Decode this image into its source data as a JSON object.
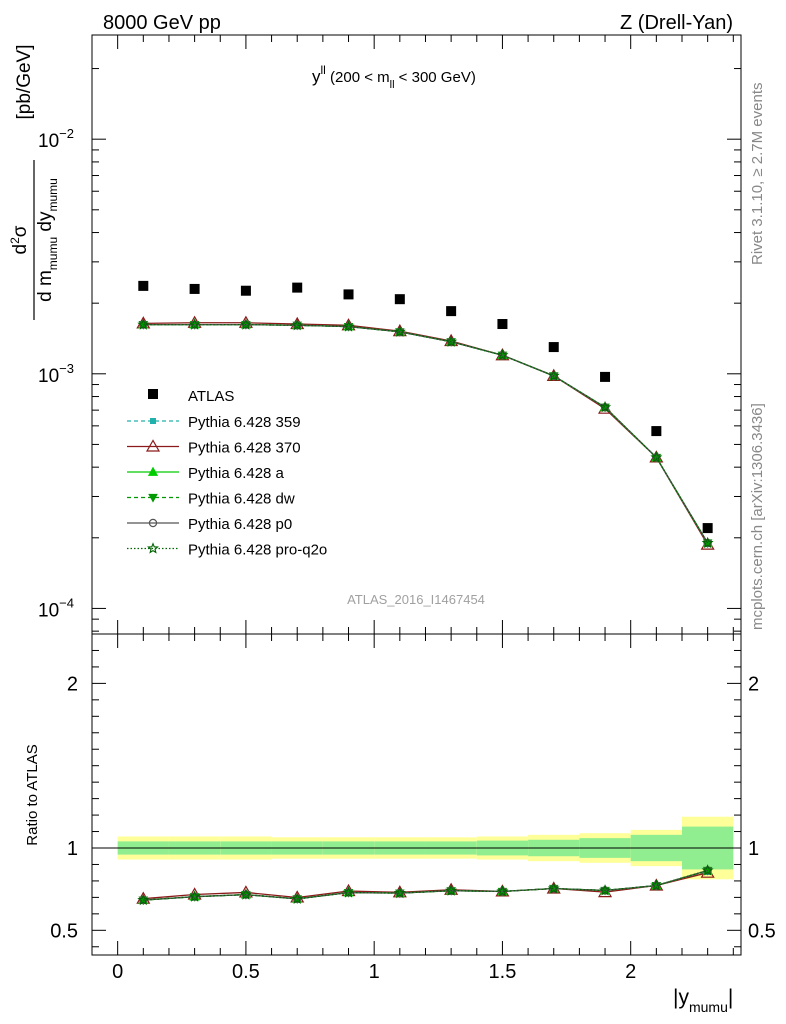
{
  "header": {
    "left": "8000 GeV pp",
    "right": "Z (Drell-Yan)"
  },
  "side_labels": {
    "rivet": "Rivet 3.1.10, ≥ 2.7M events",
    "mcplots": "mcplots.cern.ch [arXiv:1306.3436]"
  },
  "chart_data": {
    "type": "scatter",
    "title": "y^ll (200 < m_ll < 300 GeV)",
    "title_parts": {
      "main": "y",
      "sup": "ll",
      "open": " (200 < m",
      "sub": "ll",
      "close": " < 300 GeV)"
    },
    "watermark": "ATLAS_2016_I1467454",
    "xlabel": "|y_mumu|",
    "xlabel_parts": {
      "main": "|y",
      "sub": "mumu",
      "close": "|"
    },
    "ylabel": "d²σ / d m_mumu dy_mumu [pb/GeV]",
    "ylabel_parts": {
      "num_main": "d",
      "num_sup": "2",
      "num_rest": "σ",
      "den_a": "d m",
      "den_a_sub": "mumu",
      "den_b": " dy",
      "den_b_sub": "mumu",
      "unit": "[pb/GeV]"
    },
    "ratio_ylabel": "Ratio to ATLAS",
    "xlim": [
      -0.1,
      2.43
    ],
    "ylim": [
      7.78e-05,
      0.0278
    ],
    "yscale": "log",
    "ratio_ylim": [
      0.35,
      2.3
    ],
    "x_ticks": [
      {
        "v": 0,
        "label": "0"
      },
      {
        "v": 0.5,
        "label": "0.5"
      },
      {
        "v": 1,
        "label": "1"
      },
      {
        "v": 1.5,
        "label": "1.5"
      },
      {
        "v": 2,
        "label": "2"
      }
    ],
    "y_ticks": [
      {
        "v": 0.01,
        "base": "10",
        "exp": "−2"
      },
      {
        "v": 0.001,
        "base": "10",
        "exp": "−3"
      },
      {
        "v": 0.0001,
        "base": "10",
        "exp": "−4"
      }
    ],
    "ratio_ticks": [
      {
        "v": 0.5,
        "label": "0.5"
      },
      {
        "v": 1,
        "label": "1"
      },
      {
        "v": 2,
        "label": "2"
      }
    ],
    "x": [
      0.1,
      0.3,
      0.5,
      0.7,
      0.9,
      1.1,
      1.3,
      1.5,
      1.7,
      1.9,
      2.1,
      2.3
    ],
    "bin_edges": [
      0.0,
      0.2,
      0.4,
      0.6,
      0.8,
      1.0,
      1.2,
      1.4,
      1.6,
      1.8,
      2.0,
      2.2,
      2.4
    ],
    "data": {
      "name": "ATLAS",
      "color": "#000000",
      "values": [
        0.00237,
        0.0023,
        0.00226,
        0.00233,
        0.00218,
        0.00208,
        0.00185,
        0.00163,
        0.0013,
        0.00097,
        0.00057,
        0.00022
      ],
      "band_inner": [
        0.04,
        0.04,
        0.04,
        0.04,
        0.04,
        0.04,
        0.04,
        0.045,
        0.05,
        0.06,
        0.08,
        0.13
      ],
      "band_outer": [
        0.07,
        0.07,
        0.07,
        0.065,
        0.065,
        0.065,
        0.065,
        0.07,
        0.08,
        0.09,
        0.11,
        0.19
      ],
      "band_inner_color": "#90ee90",
      "band_outer_color": "#ffff99"
    },
    "series": [
      {
        "name": "Pythia 6.428 359",
        "color": "#20b2aa",
        "dash": "4,3",
        "marker": "square-small",
        "values": [
          0.00162,
          0.00162,
          0.00162,
          0.00161,
          0.00159,
          0.00151,
          0.00137,
          0.0012,
          0.00098,
          0.00072,
          0.00044,
          0.000188
        ]
      },
      {
        "name": "Pythia 6.428 370",
        "color": "#8b1a1a",
        "dash": "",
        "marker": "triangle-open",
        "values": [
          0.00164,
          0.00165,
          0.00165,
          0.00163,
          0.00161,
          0.00152,
          0.00138,
          0.0012,
          0.00098,
          0.00071,
          0.00044,
          0.000187
        ]
      },
      {
        "name": "Pythia 6.428 a",
        "color": "#00cc00",
        "dash": "",
        "marker": "triangle-filled",
        "values": [
          0.00162,
          0.00162,
          0.00162,
          0.00161,
          0.00159,
          0.00151,
          0.00137,
          0.0012,
          0.00098,
          0.00072,
          0.00044,
          0.00019
        ]
      },
      {
        "name": "Pythia 6.428 dw",
        "color": "#009900",
        "dash": "4,3",
        "marker": "triangle-down",
        "values": [
          0.00162,
          0.00162,
          0.00162,
          0.00161,
          0.00159,
          0.00151,
          0.00137,
          0.0012,
          0.00098,
          0.00072,
          0.00044,
          0.00019
        ]
      },
      {
        "name": "Pythia 6.428 p0",
        "color": "#555555",
        "dash": "",
        "marker": "circle-open",
        "values": [
          0.00162,
          0.00162,
          0.00162,
          0.00161,
          0.00159,
          0.00151,
          0.00137,
          0.0012,
          0.00098,
          0.00072,
          0.00044,
          0.00019
        ]
      },
      {
        "name": "Pythia 6.428 pro-q2o",
        "color": "#006400",
        "dash": "1.5,2",
        "marker": "star-open",
        "values": [
          0.00162,
          0.00162,
          0.00162,
          0.00161,
          0.00159,
          0.00151,
          0.00137,
          0.0012,
          0.00098,
          0.00072,
          0.00044,
          0.00019
        ]
      }
    ],
    "legend_placement": "left-middle"
  }
}
